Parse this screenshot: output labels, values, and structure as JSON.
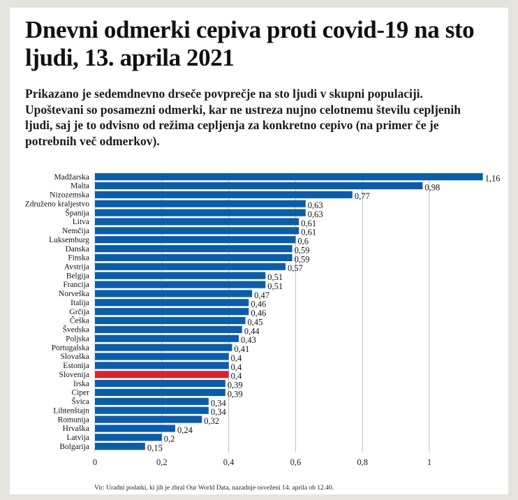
{
  "title": "Dnevni odmerki cepiva proti covid-19 na sto ljudi, 13. aprila 2021",
  "subtitle": "Prikazano je sedemdnevno drseče povprečje na sto ljudi v skupni populaciji. Upoštevani so posamezni odmerki, kar ne ustreza nujno celotnemu številu cepljenih ljudi, saj je to odvisno od režima cepljenja za konkretno cepivo (na primer če je potrebnih več odmerkov).",
  "source": "Vir: Uradni podatki, ki jih je zbral Our World Data, nazadnje osveženi 14. aprila ob 12.40.",
  "colors": {
    "bar": "#0c5da8",
    "highlight": "#d7262b",
    "grid": "#bdbdbd",
    "background": "#e5e3de",
    "card": "#ffffff"
  },
  "chart_data": {
    "type": "bar",
    "orientation": "horizontal",
    "title": "Dnevni odmerki cepiva proti covid-19 na sto ljudi, 13. aprila 2021",
    "xlabel": "",
    "ylabel": "",
    "xlim": [
      0,
      1.16
    ],
    "grid": true,
    "x_ticks": [
      0,
      0.2,
      0.4,
      0.6,
      0.8,
      1
    ],
    "x_tick_labels": [
      "0",
      "0,2",
      "0,4",
      "0,6",
      "0,8",
      "1"
    ],
    "highlight_category": "Slovenija",
    "categories": [
      "Madžarska",
      "Malta",
      "Nizozemska",
      "Združeno kraljestvo",
      "Španija",
      "Litva",
      "Nemčija",
      "Luksemburg",
      "Danska",
      "Finska",
      "Avstrija",
      "Belgija",
      "Francija",
      "Norveška",
      "Italija",
      "Grčija",
      "Češka",
      "Švedska",
      "Poljska",
      "Portugalska",
      "Slovaška",
      "Estonija",
      "Slovenija",
      "Irska",
      "Ciper",
      "Švica",
      "Lihtenštajn",
      "Romunija",
      "Hrvaška",
      "Latvija",
      "Bolgarija"
    ],
    "values": [
      1.16,
      0.98,
      0.77,
      0.63,
      0.63,
      0.61,
      0.61,
      0.6,
      0.59,
      0.59,
      0.57,
      0.51,
      0.51,
      0.47,
      0.46,
      0.46,
      0.45,
      0.44,
      0.43,
      0.41,
      0.4,
      0.4,
      0.4,
      0.39,
      0.39,
      0.34,
      0.34,
      0.32,
      0.24,
      0.2,
      0.15
    ],
    "value_labels": [
      "1,16",
      "0,98",
      "0,77",
      "0,63",
      "0,63",
      "0,61",
      "0,61",
      "0,6",
      "0,59",
      "0,59",
      "0,57",
      "0,51",
      "0,51",
      "0,47",
      "0,46",
      "0,46",
      "0,45",
      "0,44",
      "0,43",
      "0,41",
      "0,4",
      "0,4",
      "0,4",
      "0,39",
      "0,39",
      "0,34",
      "0,34",
      "0,32",
      "0,24",
      "0,2",
      "0,15"
    ]
  }
}
